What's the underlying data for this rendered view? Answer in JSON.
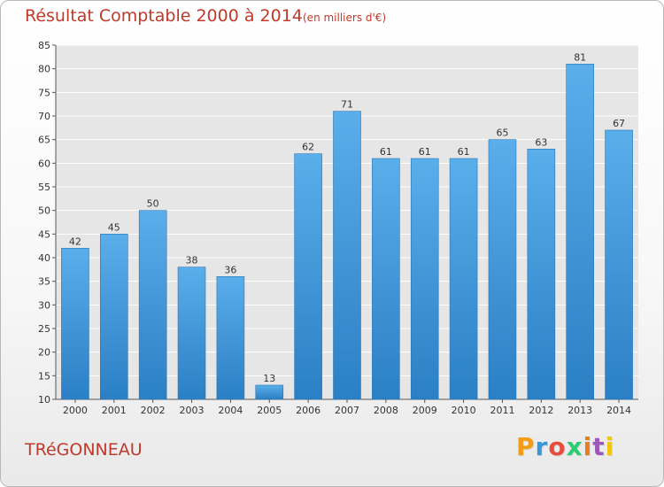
{
  "chart_data": {
    "type": "bar",
    "title": "Résultat Comptable 2000 à 2014",
    "subtitle": "(en milliers d'€)",
    "categories": [
      "2000",
      "2001",
      "2002",
      "2003",
      "2004",
      "2005",
      "2006",
      "2007",
      "2008",
      "2009",
      "2010",
      "2011",
      "2012",
      "2013",
      "2014"
    ],
    "values": [
      42,
      45,
      50,
      38,
      36,
      13,
      62,
      71,
      61,
      61,
      61,
      65,
      63,
      81,
      67
    ],
    "ylim": [
      10,
      85
    ],
    "yticks": [
      10,
      15,
      20,
      25,
      30,
      35,
      40,
      45,
      50,
      55,
      60,
      65,
      70,
      75,
      80,
      85
    ],
    "grid": true,
    "bar_color": "#4a9fe0"
  },
  "commune": "TRéGONNEAU",
  "brand": {
    "letters": [
      "P",
      "r",
      "o",
      "x",
      "i",
      "t",
      "i"
    ],
    "colors": [
      "#f39c12",
      "#3498db",
      "#e74c3c",
      "#2ecc71",
      "#e67e22",
      "#9b59b6",
      "#f1c40f"
    ]
  }
}
